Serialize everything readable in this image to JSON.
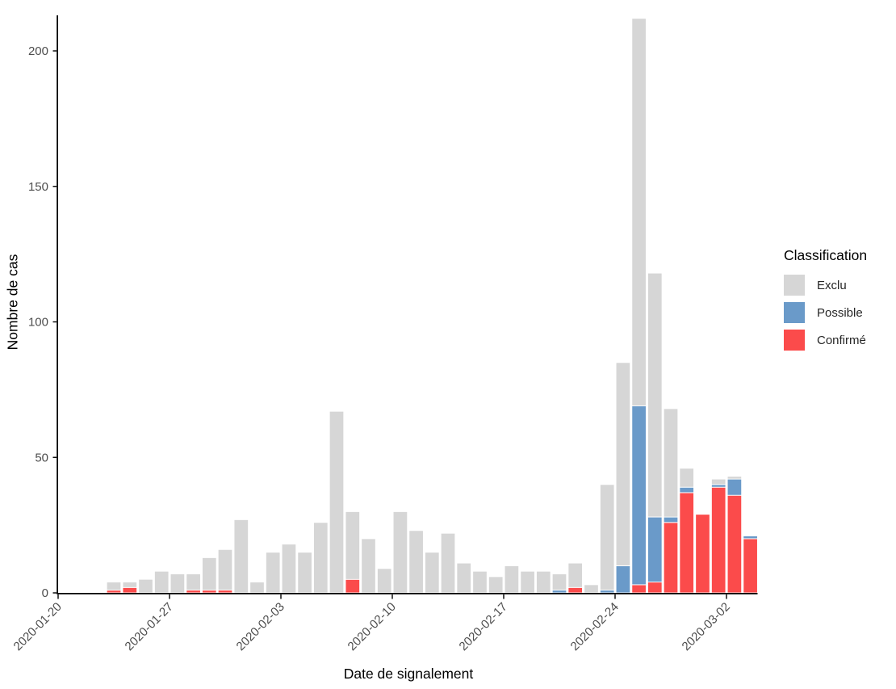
{
  "chart_data": {
    "type": "bar",
    "stacked": true,
    "orientation": "vertical",
    "title": "",
    "xlabel": "Date de signalement",
    "ylabel": "Nombre de cas",
    "ylim": [
      0,
      213
    ],
    "yticks": [
      0,
      50,
      100,
      150,
      200
    ],
    "grid": false,
    "background": "#FFFFFF",
    "x_start_date": "2020-01-20",
    "x_tick_dates": [
      "2020-01-20",
      "2020-01-27",
      "2020-02-03",
      "2020-02-10",
      "2020-02-17",
      "2020-02-24",
      "2020-03-02"
    ],
    "stack_order_bottom_to_top": [
      "confirme",
      "possible",
      "exclu"
    ],
    "colors": {
      "exclu": "#D6D6D6",
      "possible": "#6A9AC9",
      "confirme": "#FB4B4B",
      "axis_line": "#000000",
      "axis_text": "#4D4D4D",
      "title_text": "#000000"
    },
    "legend": {
      "title": "Classification",
      "position": "right",
      "entries": [
        {
          "label": "Exclu",
          "key": "exclu",
          "color": "#D6D6D6"
        },
        {
          "label": "Possible",
          "key": "possible",
          "color": "#6A9AC9"
        },
        {
          "label": "Confirmé",
          "key": "confirme",
          "color": "#FB4B4B"
        }
      ]
    },
    "bars": [
      {
        "date": "2020-01-23",
        "confirme": 1,
        "possible": 0,
        "exclu": 3
      },
      {
        "date": "2020-01-24",
        "confirme": 2,
        "possible": 0,
        "exclu": 2
      },
      {
        "date": "2020-01-25",
        "confirme": 0,
        "possible": 0,
        "exclu": 5
      },
      {
        "date": "2020-01-26",
        "confirme": 0,
        "possible": 0,
        "exclu": 8
      },
      {
        "date": "2020-01-27",
        "confirme": 0,
        "possible": 0,
        "exclu": 7
      },
      {
        "date": "2020-01-28",
        "confirme": 1,
        "possible": 0,
        "exclu": 6
      },
      {
        "date": "2020-01-29",
        "confirme": 1,
        "possible": 0,
        "exclu": 12
      },
      {
        "date": "2020-01-30",
        "confirme": 1,
        "possible": 0,
        "exclu": 15
      },
      {
        "date": "2020-01-31",
        "confirme": 0,
        "possible": 0,
        "exclu": 27
      },
      {
        "date": "2020-02-01",
        "confirme": 0,
        "possible": 0,
        "exclu": 4
      },
      {
        "date": "2020-02-02",
        "confirme": 0,
        "possible": 0,
        "exclu": 15
      },
      {
        "date": "2020-02-03",
        "confirme": 0,
        "possible": 0,
        "exclu": 18
      },
      {
        "date": "2020-02-04",
        "confirme": 0,
        "possible": 0,
        "exclu": 15
      },
      {
        "date": "2020-02-05",
        "confirme": 0,
        "possible": 0,
        "exclu": 26
      },
      {
        "date": "2020-02-06",
        "confirme": 0,
        "possible": 0,
        "exclu": 67
      },
      {
        "date": "2020-02-07",
        "confirme": 5,
        "possible": 0,
        "exclu": 25
      },
      {
        "date": "2020-02-08",
        "confirme": 0,
        "possible": 0,
        "exclu": 20
      },
      {
        "date": "2020-02-09",
        "confirme": 0,
        "possible": 0,
        "exclu": 9
      },
      {
        "date": "2020-02-10",
        "confirme": 0,
        "possible": 0,
        "exclu": 30
      },
      {
        "date": "2020-02-11",
        "confirme": 0,
        "possible": 0,
        "exclu": 23
      },
      {
        "date": "2020-02-12",
        "confirme": 0,
        "possible": 0,
        "exclu": 15
      },
      {
        "date": "2020-02-13",
        "confirme": 0,
        "possible": 0,
        "exclu": 22
      },
      {
        "date": "2020-02-14",
        "confirme": 0,
        "possible": 0,
        "exclu": 11
      },
      {
        "date": "2020-02-15",
        "confirme": 0,
        "possible": 0,
        "exclu": 8
      },
      {
        "date": "2020-02-16",
        "confirme": 0,
        "possible": 0,
        "exclu": 6
      },
      {
        "date": "2020-02-17",
        "confirme": 0,
        "possible": 0,
        "exclu": 10
      },
      {
        "date": "2020-02-18",
        "confirme": 0,
        "possible": 0,
        "exclu": 8
      },
      {
        "date": "2020-02-19",
        "confirme": 0,
        "possible": 0,
        "exclu": 8
      },
      {
        "date": "2020-02-20",
        "confirme": 0,
        "possible": 1,
        "exclu": 6
      },
      {
        "date": "2020-02-21",
        "confirme": 2,
        "possible": 0,
        "exclu": 9
      },
      {
        "date": "2020-02-22",
        "confirme": 0,
        "possible": 0,
        "exclu": 3
      },
      {
        "date": "2020-02-23",
        "confirme": 0,
        "possible": 1,
        "exclu": 39
      },
      {
        "date": "2020-02-24",
        "confirme": 0,
        "possible": 10,
        "exclu": 75
      },
      {
        "date": "2020-02-25",
        "confirme": 3,
        "possible": 66,
        "exclu": 143
      },
      {
        "date": "2020-02-26",
        "confirme": 4,
        "possible": 24,
        "exclu": 90
      },
      {
        "date": "2020-02-27",
        "confirme": 26,
        "possible": 2,
        "exclu": 40
      },
      {
        "date": "2020-02-28",
        "confirme": 37,
        "possible": 2,
        "exclu": 7
      },
      {
        "date": "2020-02-29",
        "confirme": 29,
        "possible": 0,
        "exclu": 0
      },
      {
        "date": "2020-03-01",
        "confirme": 39,
        "possible": 1,
        "exclu": 2
      },
      {
        "date": "2020-03-02",
        "confirme": 36,
        "possible": 6,
        "exclu": 1
      },
      {
        "date": "2020-03-03",
        "confirme": 20,
        "possible": 1,
        "exclu": 0
      }
    ]
  }
}
